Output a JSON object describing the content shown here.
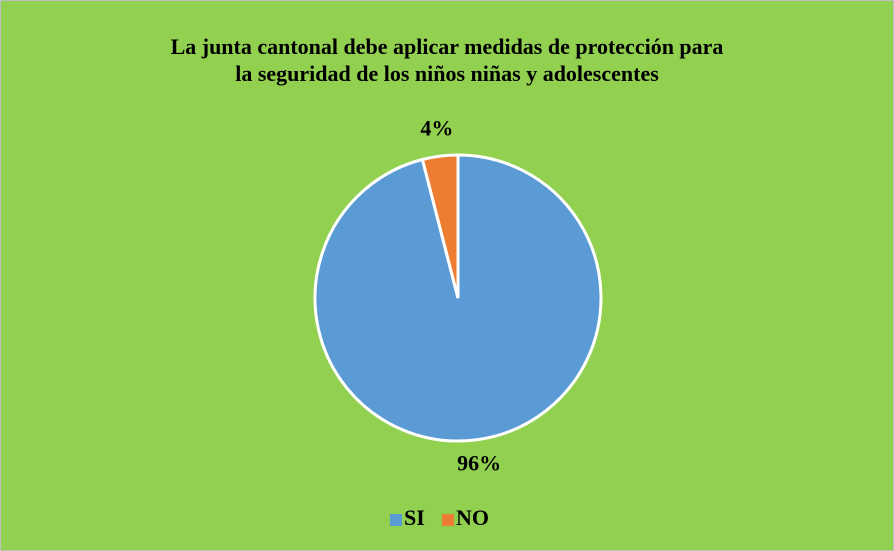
{
  "chart_data": {
    "type": "pie",
    "title": [
      "La junta cantonal debe aplicar medidas de protección para",
      "la seguridad de los niños niñas y adolescentes"
    ],
    "categories": [
      "SI",
      "NO"
    ],
    "values": [
      96,
      4
    ],
    "value_labels": [
      "96%",
      "4%"
    ],
    "colors": [
      "#5b9bd5",
      "#ed7d31"
    ],
    "background": "#92d050",
    "legend": "bottom"
  }
}
